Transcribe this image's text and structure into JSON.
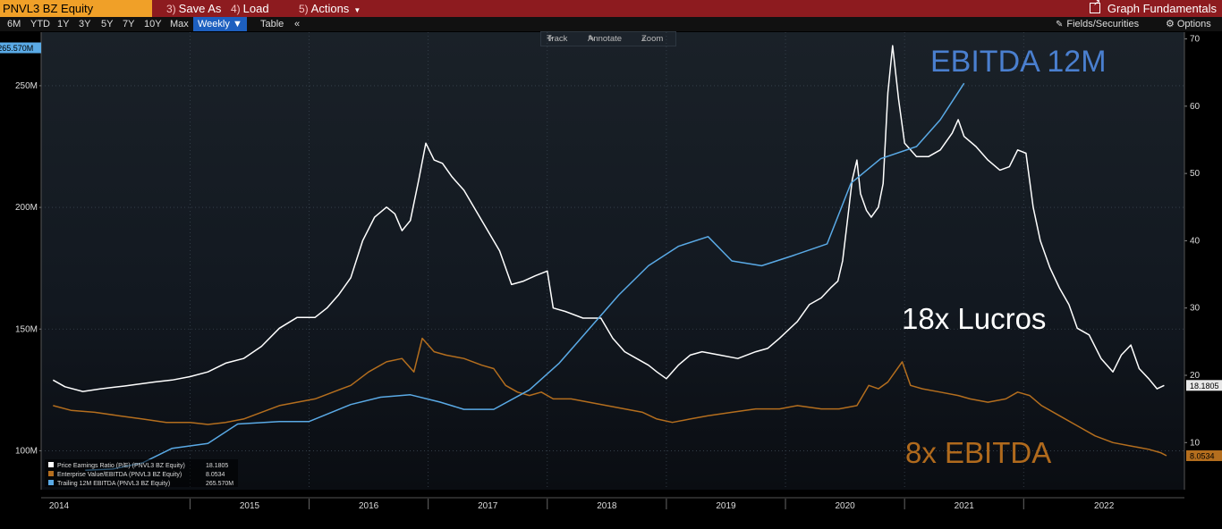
{
  "toolbar": {
    "ticker": "PNVL3 BZ Equity",
    "save_as_num": "3)",
    "save_as": "Save As",
    "load_num": "4)",
    "load": "Load",
    "actions_num": "5)",
    "actions": "Actions",
    "graph_title": "Graph Fundamentals",
    "colors": {
      "bar": "#8d1b1f",
      "ticker": "#f0a028"
    }
  },
  "range_bar": {
    "ranges": [
      "6M",
      "YTD",
      "1Y",
      "3Y",
      "5Y",
      "7Y",
      "10Y",
      "Max"
    ],
    "frequency": "Weekly",
    "table": "Table",
    "collapse": "«",
    "fields_securities": "Fields/Securities",
    "options": "Options"
  },
  "chart_tools": {
    "track": "Track",
    "annotate": "Annotate",
    "zoom": "Zoom"
  },
  "chart_data": {
    "type": "line",
    "x_label": "",
    "x_ticks": [
      "2014",
      "2015",
      "2016",
      "2017",
      "2018",
      "2019",
      "2020",
      "2021",
      "2022"
    ],
    "left_axis": {
      "ticks": [
        "100M",
        "150M",
        "200M",
        "250M"
      ],
      "range": [
        84,
        272
      ],
      "current_label": "265.570M"
    },
    "right_axis": {
      "ticks": [
        "10",
        "20",
        "30",
        "40",
        "50",
        "60",
        "70"
      ],
      "range": [
        3,
        71
      ],
      "current_labels": [
        "18.1805",
        "8.0534"
      ]
    },
    "series": [
      {
        "name": "Price Earnings Ratio (P/E) (PNVL3 BZ Equity)",
        "last": "18.1805",
        "axis": "right",
        "color": "#ffffff",
        "points": [
          [
            2013.85,
            19.3
          ],
          [
            2013.95,
            18.3
          ],
          [
            2014.1,
            17.6
          ],
          [
            2014.25,
            18.0
          ],
          [
            2014.45,
            18.4
          ],
          [
            2014.7,
            19.0
          ],
          [
            2014.85,
            19.3
          ],
          [
            2015.0,
            19.8
          ],
          [
            2015.15,
            20.5
          ],
          [
            2015.3,
            21.8
          ],
          [
            2015.45,
            22.5
          ],
          [
            2015.6,
            24.3
          ],
          [
            2015.75,
            27.0
          ],
          [
            2015.9,
            28.6
          ],
          [
            2016.05,
            28.6
          ],
          [
            2016.15,
            30.0
          ],
          [
            2016.25,
            32.0
          ],
          [
            2016.35,
            34.5
          ],
          [
            2016.45,
            40.0
          ],
          [
            2016.55,
            43.5
          ],
          [
            2016.65,
            45.0
          ],
          [
            2016.72,
            44.0
          ],
          [
            2016.78,
            41.5
          ],
          [
            2016.85,
            43.0
          ],
          [
            2016.92,
            49.0
          ],
          [
            2016.98,
            54.5
          ],
          [
            2017.05,
            52.0
          ],
          [
            2017.12,
            51.5
          ],
          [
            2017.2,
            49.5
          ],
          [
            2017.3,
            47.5
          ],
          [
            2017.4,
            44.5
          ],
          [
            2017.5,
            41.5
          ],
          [
            2017.6,
            38.5
          ],
          [
            2017.7,
            33.5
          ],
          [
            2017.8,
            34.0
          ],
          [
            2017.9,
            34.8
          ],
          [
            2018.0,
            35.5
          ],
          [
            2018.05,
            30.0
          ],
          [
            2018.15,
            29.5
          ],
          [
            2018.3,
            28.5
          ],
          [
            2018.45,
            28.5
          ],
          [
            2018.55,
            25.5
          ],
          [
            2018.65,
            23.5
          ],
          [
            2018.75,
            22.5
          ],
          [
            2018.85,
            21.5
          ],
          [
            2018.92,
            20.5
          ],
          [
            2019.0,
            19.5
          ],
          [
            2019.1,
            21.5
          ],
          [
            2019.2,
            23.0
          ],
          [
            2019.3,
            23.5
          ],
          [
            2019.45,
            23.0
          ],
          [
            2019.6,
            22.5
          ],
          [
            2019.75,
            23.5
          ],
          [
            2019.85,
            24.0
          ],
          [
            2019.95,
            25.5
          ],
          [
            2020.1,
            28.0
          ],
          [
            2020.2,
            30.5
          ],
          [
            2020.3,
            31.5
          ],
          [
            2020.38,
            33.0
          ],
          [
            2020.44,
            34.0
          ],
          [
            2020.48,
            37.0
          ],
          [
            2020.52,
            43.0
          ],
          [
            2020.56,
            49.0
          ],
          [
            2020.6,
            52.0
          ],
          [
            2020.63,
            47.0
          ],
          [
            2020.68,
            44.5
          ],
          [
            2020.72,
            43.5
          ],
          [
            2020.78,
            45.0
          ],
          [
            2020.82,
            48.5
          ],
          [
            2020.86,
            62.0
          ],
          [
            2020.9,
            69.0
          ],
          [
            2020.95,
            61.0
          ],
          [
            2021.0,
            54.5
          ],
          [
            2021.1,
            52.5
          ],
          [
            2021.2,
            52.5
          ],
          [
            2021.3,
            53.5
          ],
          [
            2021.4,
            56.0
          ],
          [
            2021.45,
            58.0
          ],
          [
            2021.5,
            55.5
          ],
          [
            2021.6,
            54.0
          ],
          [
            2021.7,
            52.0
          ],
          [
            2021.8,
            50.5
          ],
          [
            2021.88,
            51.0
          ],
          [
            2021.95,
            53.5
          ],
          [
            2022.02,
            53.0
          ],
          [
            2022.08,
            45.0
          ],
          [
            2022.14,
            40.0
          ],
          [
            2022.22,
            36.0
          ],
          [
            2022.3,
            33.0
          ],
          [
            2022.38,
            30.5
          ],
          [
            2022.45,
            27.0
          ],
          [
            2022.55,
            26.0
          ],
          [
            2022.65,
            22.5
          ],
          [
            2022.75,
            20.5
          ],
          [
            2022.82,
            23.0
          ],
          [
            2022.9,
            24.5
          ],
          [
            2022.97,
            21.0
          ],
          [
            2023.05,
            19.5
          ],
          [
            2023.12,
            18.0
          ],
          [
            2023.18,
            18.5
          ]
        ]
      },
      {
        "name": "Enterprise Value/EBITDA (PNVL3 BZ Equity)",
        "last": "8.0534",
        "axis": "right",
        "color": "#b46e1e",
        "points": [
          [
            2013.85,
            15.5
          ],
          [
            2014.0,
            14.8
          ],
          [
            2014.2,
            14.5
          ],
          [
            2014.4,
            14.0
          ],
          [
            2014.6,
            13.5
          ],
          [
            2014.8,
            13.0
          ],
          [
            2015.0,
            13.0
          ],
          [
            2015.15,
            12.7
          ],
          [
            2015.3,
            13.0
          ],
          [
            2015.45,
            13.5
          ],
          [
            2015.6,
            14.5
          ],
          [
            2015.75,
            15.5
          ],
          [
            2015.9,
            16.0
          ],
          [
            2016.05,
            16.5
          ],
          [
            2016.2,
            17.5
          ],
          [
            2016.35,
            18.5
          ],
          [
            2016.5,
            20.5
          ],
          [
            2016.65,
            22.0
          ],
          [
            2016.78,
            22.5
          ],
          [
            2016.88,
            20.5
          ],
          [
            2016.95,
            25.5
          ],
          [
            2017.05,
            23.5
          ],
          [
            2017.15,
            23.0
          ],
          [
            2017.3,
            22.5
          ],
          [
            2017.45,
            21.5
          ],
          [
            2017.55,
            21.0
          ],
          [
            2017.65,
            18.5
          ],
          [
            2017.75,
            17.5
          ],
          [
            2017.85,
            17.0
          ],
          [
            2017.95,
            17.5
          ],
          [
            2018.05,
            16.5
          ],
          [
            2018.2,
            16.5
          ],
          [
            2018.35,
            16.0
          ],
          [
            2018.5,
            15.5
          ],
          [
            2018.65,
            15.0
          ],
          [
            2018.8,
            14.5
          ],
          [
            2018.92,
            13.5
          ],
          [
            2019.05,
            13.0
          ],
          [
            2019.2,
            13.5
          ],
          [
            2019.35,
            14.0
          ],
          [
            2019.55,
            14.5
          ],
          [
            2019.75,
            15.0
          ],
          [
            2019.95,
            15.0
          ],
          [
            2020.1,
            15.5
          ],
          [
            2020.3,
            15.0
          ],
          [
            2020.45,
            15.0
          ],
          [
            2020.6,
            15.5
          ],
          [
            2020.7,
            18.5
          ],
          [
            2020.78,
            18.0
          ],
          [
            2020.86,
            19.0
          ],
          [
            2020.92,
            20.5
          ],
          [
            2020.98,
            22.0
          ],
          [
            2021.05,
            18.5
          ],
          [
            2021.15,
            18.0
          ],
          [
            2021.3,
            17.5
          ],
          [
            2021.45,
            17.0
          ],
          [
            2021.55,
            16.5
          ],
          [
            2021.7,
            16.0
          ],
          [
            2021.85,
            16.5
          ],
          [
            2021.95,
            17.5
          ],
          [
            2022.05,
            17.0
          ],
          [
            2022.15,
            15.5
          ],
          [
            2022.3,
            14.0
          ],
          [
            2022.45,
            12.5
          ],
          [
            2022.6,
            11.0
          ],
          [
            2022.75,
            10.0
          ],
          [
            2022.9,
            9.5
          ],
          [
            2023.05,
            9.0
          ],
          [
            2023.15,
            8.5
          ],
          [
            2023.2,
            8.05
          ]
        ]
      },
      {
        "name": "Trailing 12M EBITDA (PNVL3 BZ Equity)",
        "last": "265.570M",
        "axis": "left",
        "color": "#5aaae6",
        "points": [
          [
            2014.12,
            92
          ],
          [
            2014.35,
            92.5
          ],
          [
            2014.6,
            95
          ],
          [
            2014.85,
            101
          ],
          [
            2015.15,
            103
          ],
          [
            2015.4,
            111
          ],
          [
            2015.75,
            112
          ],
          [
            2016.0,
            112
          ],
          [
            2016.35,
            119
          ],
          [
            2016.6,
            122
          ],
          [
            2016.85,
            123
          ],
          [
            2017.1,
            120
          ],
          [
            2017.3,
            117
          ],
          [
            2017.55,
            117
          ],
          [
            2017.85,
            125
          ],
          [
            2018.1,
            136
          ],
          [
            2018.35,
            150
          ],
          [
            2018.6,
            164
          ],
          [
            2018.85,
            176
          ],
          [
            2019.1,
            184
          ],
          [
            2019.35,
            188
          ],
          [
            2019.55,
            178
          ],
          [
            2019.8,
            176
          ],
          [
            2020.05,
            180
          ],
          [
            2020.35,
            185
          ],
          [
            2020.55,
            210
          ],
          [
            2020.8,
            220
          ],
          [
            2021.1,
            225
          ],
          [
            2021.3,
            236
          ],
          [
            2021.5,
            251
          ]
        ]
      }
    ],
    "annotations": [
      {
        "text": "EBITDA 12M",
        "color": "#4a7fcf"
      },
      {
        "text": "18x Lucros",
        "color": "#ffffff"
      },
      {
        "text": "8x EBITDA",
        "color": "#b06a1d"
      }
    ]
  }
}
